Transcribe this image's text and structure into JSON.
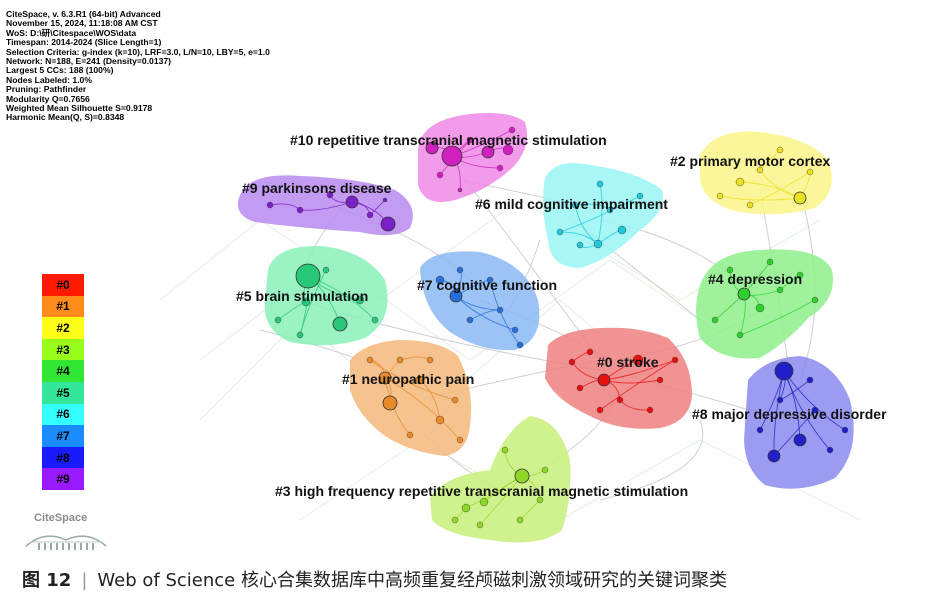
{
  "meta_lines": [
    "CiteSpace, v. 6.3.R1 (64-bit) Advanced",
    "November 15, 2024, 11:18:08 AM CST",
    "WoS: D:\\研\\Citespace\\WOS\\data",
    "Timespan: 2014-2024 (Slice Length=1)",
    "Selection Criteria: g-index (k=10), LRF=3.0, L/N=10, LBY=5, e=1.0",
    "Network: N=188, E=241 (Density=0.0137)",
    "Largest 5 CCs: 188 (100%)",
    "Nodes Labeled: 1.0%",
    "Pruning: Pathfinder",
    "Modularity Q=0.7656",
    "Weighted Mean Silhouette S=0.9178",
    "Harmonic Mean(Q, S)=0.8348"
  ],
  "legend": [
    {
      "label": "#0",
      "color": "#ff1a00"
    },
    {
      "label": "#1",
      "color": "#ff8c1a"
    },
    {
      "label": "#2",
      "color": "#ffff1a"
    },
    {
      "label": "#3",
      "color": "#99ff1a"
    },
    {
      "label": "#4",
      "color": "#33e633"
    },
    {
      "label": "#5",
      "color": "#33e699"
    },
    {
      "label": "#6",
      "color": "#33ffff"
    },
    {
      "label": "#7",
      "color": "#1a8cff"
    },
    {
      "label": "#8",
      "color": "#1a1aff"
    },
    {
      "label": "#9",
      "color": "#991aff"
    }
  ],
  "clusters": {
    "c0": "#0 stroke",
    "c1": "#1 neuropathic pain",
    "c2": "#2 primary motor cortex",
    "c3": "#3 high frequency repetitive transcranial magnetic stimulation",
    "c4": "#4 depression",
    "c5": "#5 brain stimulation",
    "c6": "#6 mild cognitive impairment",
    "c7": "#7 cognitive function",
    "c8": "#8 major depressive disorder",
    "c9": "#9 parkinsons disease",
    "c10": "#10 repetitive transcranial magnetic stimulation"
  },
  "colors": {
    "c0": "#f08080",
    "c0n": "#e81010",
    "c1": "#f5b97a",
    "c1n": "#e88a2a",
    "c2": "#fbf58a",
    "c2n": "#e8e020",
    "c3": "#c8f07a",
    "c3n": "#8fd828",
    "c4": "#8ef08a",
    "c4n": "#2ed02e",
    "c5": "#8af0b8",
    "c5n": "#28c878",
    "c6": "#9af4f4",
    "c6n": "#20c8d8",
    "c7": "#8ab8f4",
    "c7n": "#2870d8",
    "c8": "#8a8af0",
    "c8n": "#2020c8",
    "c9": "#b88af0",
    "c9n": "#7a20c8",
    "c10": "#f08ae8",
    "c10n": "#d020c0"
  },
  "logo_text": "CiteSpace",
  "caption": {
    "fig": "图 12",
    "sep": "|",
    "text": "Web of Science 核心合集数据库中高频重复经颅磁刺激领域研究的关键词聚类"
  }
}
